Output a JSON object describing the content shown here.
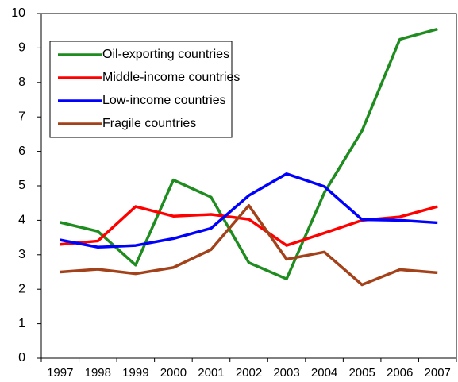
{
  "chart_data": {
    "type": "line",
    "categories": [
      "1997",
      "1998",
      "1999",
      "2000",
      "2001",
      "2002",
      "2003",
      "2004",
      "2005",
      "2006",
      "2007"
    ],
    "series": [
      {
        "name": "Oil-exporting countries",
        "color": "#1f8c1f",
        "values": [
          3.94,
          3.68,
          2.7,
          5.17,
          4.67,
          2.77,
          2.3,
          4.8,
          6.6,
          9.25,
          9.55
        ]
      },
      {
        "name": "Middle-income countries",
        "color": "#ff0000",
        "values": [
          3.3,
          3.4,
          4.4,
          4.12,
          4.17,
          4.03,
          3.27,
          3.63,
          4.0,
          4.1,
          4.4
        ]
      },
      {
        "name": "Low-income countries",
        "color": "#0000ff",
        "values": [
          3.43,
          3.22,
          3.27,
          3.47,
          3.77,
          4.72,
          5.35,
          4.98,
          4.02,
          4.0,
          3.93
        ]
      },
      {
        "name": "Fragile countries",
        "color": "#a3421a",
        "values": [
          2.5,
          2.58,
          2.45,
          2.63,
          3.15,
          4.43,
          2.87,
          3.08,
          2.13,
          2.57,
          2.48
        ]
      }
    ],
    "ylim": [
      0,
      10
    ],
    "yticks": [
      0,
      1,
      2,
      3,
      4,
      5,
      6,
      7,
      8,
      9,
      10
    ],
    "grid": false,
    "legend": "upper left"
  }
}
